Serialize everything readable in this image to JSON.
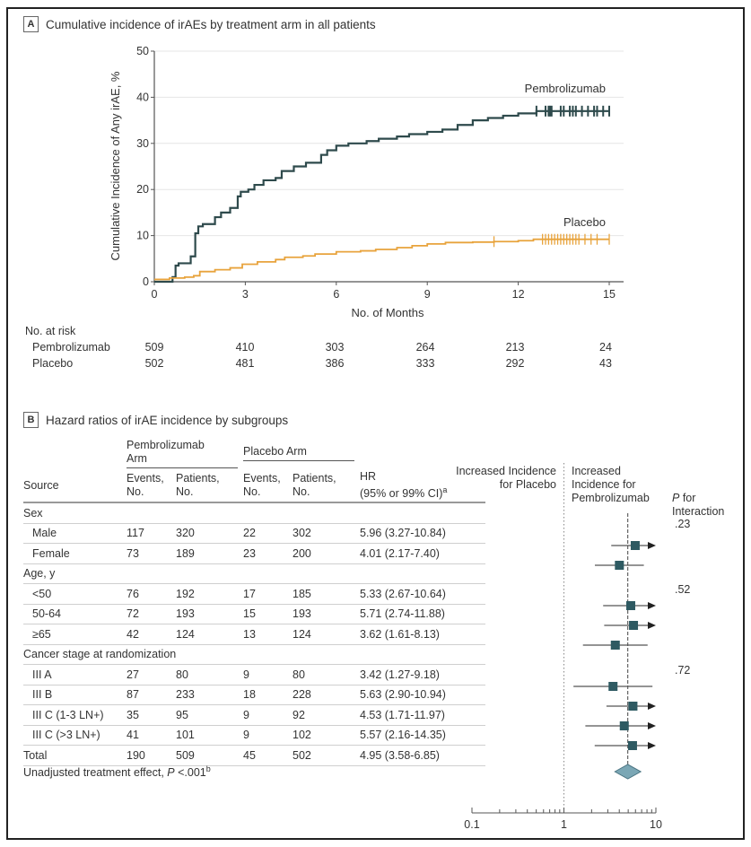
{
  "panel_a": {
    "letter": "A",
    "title": "Cumulative incidence of irAEs by treatment arm in all patients"
  },
  "panel_b": {
    "letter": "B",
    "title": "Hazard ratios of irAE incidence by subgroups"
  },
  "colors": {
    "pembrolizumab": "#2e4a4c",
    "placebo": "#e8a33c",
    "marker": "#2e5a62",
    "diamond": "#7ba7b5"
  },
  "chart_data": [
    {
      "type": "line",
      "title": "Cumulative incidence of irAEs by treatment arm in all patients",
      "xlabel": "No. of Months",
      "ylabel": "Cumulative Incidence of Any irAE, %",
      "xlim": [
        0,
        15
      ],
      "ylim": [
        0,
        50
      ],
      "xticks": [
        "0",
        "3",
        "6",
        "9",
        "12",
        "15"
      ],
      "yticks": [
        "0",
        "10",
        "20",
        "30",
        "40",
        "50"
      ],
      "grid": true,
      "series": [
        {
          "name": "Pembrolizumab",
          "label": "Pembrolizumab",
          "x": [
            0,
            0.6,
            0.7,
            0.8,
            1.2,
            1.35,
            1.45,
            1.6,
            2.0,
            2.2,
            2.5,
            2.75,
            2.85,
            3.1,
            3.3,
            3.6,
            4.0,
            4.2,
            4.6,
            5.0,
            5.5,
            5.7,
            6.0,
            6.4,
            7.0,
            7.4,
            8.0,
            8.4,
            9.0,
            9.5,
            10.0,
            10.5,
            11.0,
            11.5,
            12.0,
            12.6,
            15.0
          ],
          "y": [
            0,
            1.0,
            3.5,
            4.0,
            5.5,
            10.5,
            12.0,
            12.5,
            14.0,
            15.0,
            16.0,
            18.5,
            19.5,
            20.0,
            21.0,
            22.0,
            22.5,
            24.0,
            25.0,
            25.8,
            27.5,
            28.5,
            29.5,
            30.0,
            30.5,
            31.0,
            31.5,
            32.0,
            32.5,
            33.0,
            34.0,
            35.0,
            35.5,
            36.0,
            36.5,
            37.0,
            37.0
          ],
          "censor_x": [
            12.6,
            12.9,
            13.0,
            13.05,
            13.1,
            13.4,
            13.5,
            13.7,
            13.8,
            13.9,
            14.1,
            14.3,
            14.5,
            14.6,
            14.8,
            15.0
          ],
          "color": "#2e4a4c"
        },
        {
          "name": "Placebo",
          "label": "Placebo",
          "x": [
            0,
            0.5,
            1.0,
            1.3,
            1.5,
            2.0,
            2.5,
            2.9,
            3.4,
            4.0,
            4.3,
            4.9,
            5.3,
            6.0,
            6.8,
            7.3,
            8.0,
            8.5,
            9.0,
            9.6,
            10.5,
            11.2,
            12.0,
            12.5,
            15.0
          ],
          "y": [
            0.5,
            0.8,
            1.0,
            1.3,
            2.2,
            2.6,
            3.0,
            3.8,
            4.3,
            4.8,
            5.3,
            5.6,
            6.0,
            6.5,
            6.7,
            7.0,
            7.4,
            7.8,
            8.2,
            8.5,
            8.6,
            8.7,
            8.9,
            9.2,
            9.2
          ],
          "censor_x": [
            11.2,
            12.8,
            12.9,
            13.0,
            13.1,
            13.2,
            13.3,
            13.4,
            13.5,
            13.6,
            13.7,
            13.8,
            13.9,
            14.0,
            14.2,
            14.4,
            14.6,
            15.0
          ],
          "color": "#e8a33c"
        }
      ],
      "number_at_risk": {
        "header": "No. at risk",
        "months": [
          0,
          3,
          6,
          9,
          12,
          15
        ],
        "rows": [
          {
            "label": "Pembrolizumab",
            "values": [
              "509",
              "410",
              "303",
              "264",
              "213",
              "24"
            ]
          },
          {
            "label": "Placebo",
            "values": [
              "502",
              "481",
              "386",
              "333",
              "292",
              "43"
            ]
          }
        ]
      }
    },
    {
      "type": "forest",
      "title": "Hazard ratios of irAE incidence by subgroups",
      "xscale": "log",
      "xlim": [
        0.1,
        10
      ],
      "xticks": [
        "0.1",
        "1",
        "10"
      ],
      "reference_line": 1,
      "overall_line": 4.95,
      "left_label": "Increased Incidence for Placebo",
      "right_label": "Increased Incidence for Pembrolizumab",
      "points": [
        {
          "label": "Male",
          "hr": 5.96,
          "lo": 3.27,
          "hi": 10.84
        },
        {
          "label": "Female",
          "hr": 4.01,
          "lo": 2.17,
          "hi": 7.4
        },
        {
          "label": "<50",
          "hr": 5.33,
          "lo": 2.67,
          "hi": 10.64
        },
        {
          "label": "50-64",
          "hr": 5.71,
          "lo": 2.74,
          "hi": 11.88
        },
        {
          "label": "≥65",
          "hr": 3.62,
          "lo": 1.61,
          "hi": 8.13
        },
        {
          "label": "III A",
          "hr": 3.42,
          "lo": 1.27,
          "hi": 9.18
        },
        {
          "label": "III B",
          "hr": 5.63,
          "lo": 2.9,
          "hi": 10.94
        },
        {
          "label": "III C (1-3 LN+)",
          "hr": 4.53,
          "lo": 1.71,
          "hi": 11.97
        },
        {
          "label": "III C (>3 LN+)",
          "hr": 5.57,
          "lo": 2.16,
          "hi": 14.35
        },
        {
          "label": "Total",
          "hr": 4.95,
          "lo": 3.58,
          "hi": 6.85,
          "summary": true
        }
      ]
    }
  ],
  "table": {
    "group_headers": {
      "pembro": "Pembrolizumab Arm",
      "pembro_line1": "Pembrolizumab",
      "pembro_line2": "Arm",
      "placebo": "Placebo Arm"
    },
    "col_headers": {
      "source": "Source",
      "events1": "Events,",
      "events1b": "No.",
      "patients1": "Patients,",
      "patients1b": "No.",
      "events2": "Events,",
      "events2b": "No.",
      "patients2": "Patients,",
      "patients2b": "No.",
      "hr": "HR",
      "hr_b": "(95% or 99% CI)",
      "hr_sup": "a"
    },
    "pint_header_1": "P",
    "pint_header_1b": " for",
    "pint_header_2": "Interaction",
    "groups": [
      {
        "name": "Sex",
        "p": ".23"
      },
      {
        "name": "Age, y",
        "p": ".52"
      },
      {
        "name": "Cancer stage at randomization",
        "p": ".72"
      }
    ],
    "rows": [
      {
        "label": "Male",
        "e1": "117",
        "p1": "320",
        "e2": "22",
        "p2": "302",
        "hr": "5.96 (3.27-10.84)"
      },
      {
        "label": "Female",
        "e1": "73",
        "p1": "189",
        "e2": "23",
        "p2": "200",
        "hr": "4.01 (2.17-7.40)"
      },
      {
        "label": "<50",
        "e1": "76",
        "p1": "192",
        "e2": "17",
        "p2": "185",
        "hr": "5.33 (2.67-10.64)"
      },
      {
        "label": "50-64",
        "e1": "72",
        "p1": "193",
        "e2": "15",
        "p2": "193",
        "hr": "5.71 (2.74-11.88)"
      },
      {
        "label": "≥65",
        "e1": "42",
        "p1": "124",
        "e2": "13",
        "p2": "124",
        "hr": "3.62 (1.61-8.13)"
      },
      {
        "label": "III A",
        "e1": "27",
        "p1": "80",
        "e2": "9",
        "p2": "80",
        "hr": "3.42 (1.27-9.18)"
      },
      {
        "label": "III B",
        "e1": "87",
        "p1": "233",
        "e2": "18",
        "p2": "228",
        "hr": "5.63 (2.90-10.94)"
      },
      {
        "label": "III C (1-3 LN+)",
        "e1": "35",
        "p1": "95",
        "e2": "9",
        "p2": "92",
        "hr": "4.53 (1.71-11.97)"
      },
      {
        "label": "III C (>3 LN+)",
        "e1": "41",
        "p1": "101",
        "e2": "9",
        "p2": "102",
        "hr": "5.57 (2.16-14.35)"
      }
    ],
    "total": {
      "label": "Total",
      "e1": "190",
      "p1": "509",
      "e2": "45",
      "p2": "502",
      "hr": "4.95 (3.58-6.85)"
    },
    "footnote": "Unadjusted treatment effect, ",
    "footnote_p": "P",
    "footnote_rest": " <.001",
    "footnote_sup": "b"
  }
}
